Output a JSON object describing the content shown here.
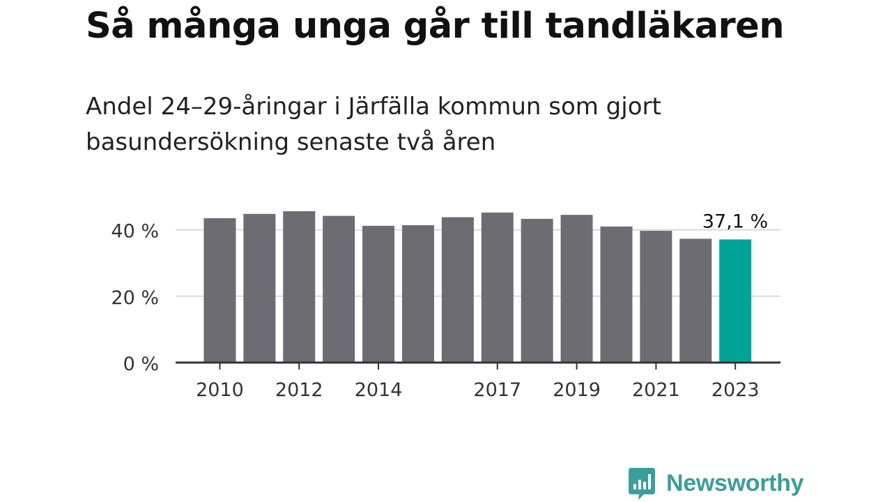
{
  "title": "Så många unga går till tandläkaren",
  "subtitle": "Andel 24–29-åringar i Järfälla kommun som gjort basundersökning senaste två åren",
  "brand": {
    "name": "Newsworthy",
    "logo_icon": "bar-chart-speech-bubble-icon"
  },
  "colors": {
    "bar": "#6d6c73",
    "highlight": "#00a398",
    "grid": "#d9d9d9",
    "axis": "#333333",
    "brand": "#3a9e9a"
  },
  "chart_data": {
    "type": "bar",
    "categories": [
      "2010",
      "2011",
      "2012",
      "2013",
      "2014",
      "2015",
      "2016",
      "2017",
      "2018",
      "2019",
      "2020",
      "2021",
      "2022",
      "2023"
    ],
    "values": [
      43.5,
      44.8,
      45.6,
      44.2,
      41.2,
      41.4,
      43.8,
      45.2,
      43.3,
      44.5,
      41.0,
      39.7,
      37.3,
      37.1
    ],
    "xticks": [
      "2010",
      "2012",
      "2014",
      "2017",
      "2019",
      "2021",
      "2023"
    ],
    "yticks": [
      0,
      20,
      40
    ],
    "ytick_labels": [
      "0 %",
      "20 %",
      "40 %"
    ],
    "ylim": [
      0,
      50
    ],
    "highlight_index": 13,
    "highlight_label": "37,1 %",
    "grid": true,
    "legend": false,
    "xlabel": "",
    "ylabel": ""
  }
}
